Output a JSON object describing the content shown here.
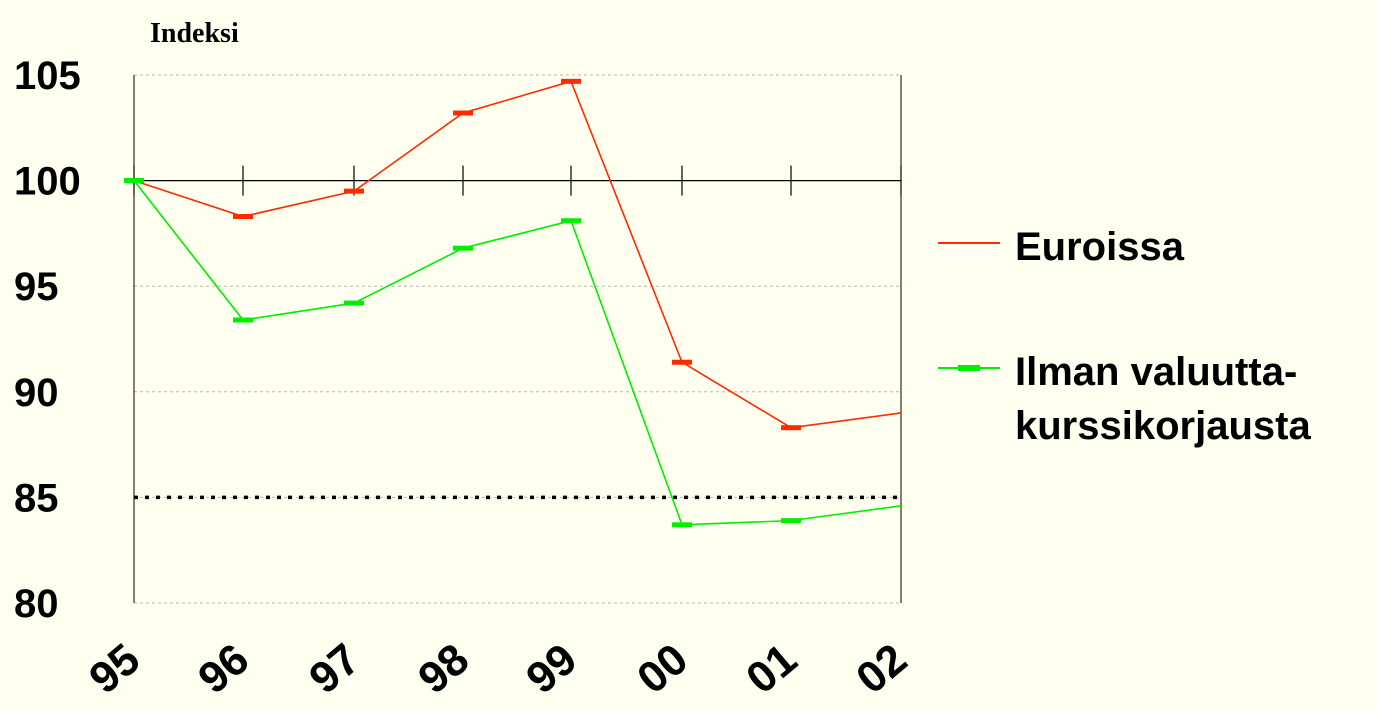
{
  "chart_data": {
    "type": "line",
    "unit_label": "Indeksi",
    "categories": [
      "95",
      "96",
      "97",
      "98",
      "99",
      "00",
      "01",
      "02"
    ],
    "ylim": [
      80,
      105
    ],
    "yticks": [
      "80",
      "85",
      "90",
      "95",
      "100",
      "105"
    ],
    "grid": true,
    "reference_line": 85,
    "series": [
      {
        "name": "Euroissa",
        "color": "#ff2a00",
        "values": [
          100.0,
          98.3,
          99.5,
          103.2,
          104.7,
          91.4,
          88.3,
          89.0
        ]
      },
      {
        "name": "Ilman valuutta-kurssikorjausta",
        "legend_lines": [
          "Ilman valuutta-",
          "kurssikorjausta"
        ],
        "color": "#00ee00",
        "values": [
          100.0,
          93.4,
          94.2,
          96.8,
          98.1,
          83.7,
          83.9,
          84.6
        ]
      }
    ],
    "legend_position": "right"
  }
}
